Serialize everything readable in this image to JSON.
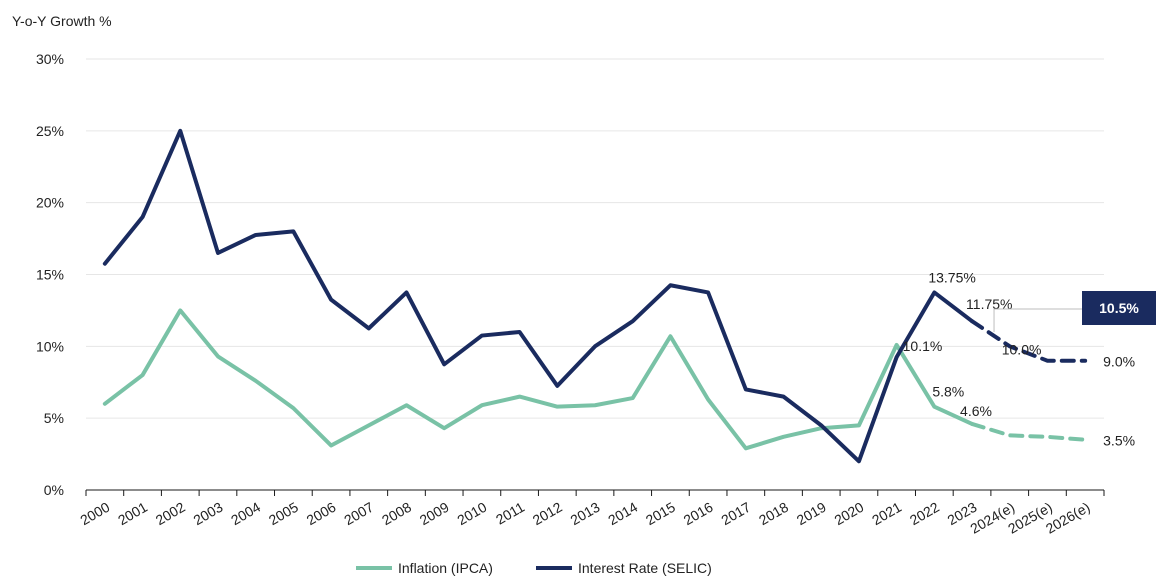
{
  "chart_data": {
    "type": "line",
    "ylabel": "Y-o-Y Growth %",
    "ylim": [
      0,
      30
    ],
    "yticks": [
      0,
      5,
      10,
      15,
      20,
      25,
      30
    ],
    "ytick_labels": [
      "0%",
      "5%",
      "10%",
      "15%",
      "20%",
      "25%",
      "30%"
    ],
    "categories": [
      "2000",
      "2001",
      "2002",
      "2003",
      "2004",
      "2005",
      "2006",
      "2007",
      "2008",
      "2009",
      "2010",
      "2011",
      "2012",
      "2013",
      "2014",
      "2015",
      "2016",
      "2017",
      "2018",
      "2019",
      "2020",
      "2021",
      "2022",
      "2023",
      "2024(e)",
      "2025(e)",
      "2026(e)"
    ],
    "grid": true,
    "legend_position": "bottom",
    "series": [
      {
        "name": "Inflation (IPCA)",
        "color": "#79c2a6",
        "values": [
          6.0,
          8.0,
          12.5,
          9.3,
          7.6,
          5.7,
          3.1,
          4.5,
          5.9,
          4.3,
          5.9,
          6.5,
          5.8,
          5.9,
          6.4,
          10.7,
          6.3,
          2.9,
          3.7,
          4.3,
          4.5,
          10.1,
          5.8,
          4.6,
          3.8,
          3.7,
          3.5
        ],
        "forecast_from_index": 23
      },
      {
        "name": "Interest Rate (SELIC)",
        "color": "#1a2b5f",
        "values": [
          15.75,
          19.0,
          25.0,
          16.5,
          17.75,
          18.0,
          13.25,
          11.25,
          13.75,
          8.75,
          10.75,
          11.0,
          7.25,
          10.0,
          11.75,
          14.25,
          13.75,
          7.0,
          6.5,
          4.5,
          2.0,
          9.25,
          13.75,
          11.75,
          10.0,
          9.0,
          9.0
        ],
        "forecast_from_index": 23
      }
    ],
    "data_labels": [
      {
        "series": 1,
        "index": 22,
        "text": "13.75%"
      },
      {
        "series": 1,
        "index": 23,
        "text": "11.75%"
      },
      {
        "series": 1,
        "index": 24,
        "text": "10.0%"
      },
      {
        "series": 1,
        "index": 26,
        "text": "9.0%"
      },
      {
        "series": 0,
        "index": 21,
        "text": "10.1%"
      },
      {
        "series": 0,
        "index": 22,
        "text": "5.8%"
      },
      {
        "series": 0,
        "index": 23,
        "text": "4.6%"
      },
      {
        "series": 0,
        "index": 26,
        "text": "3.5%"
      }
    ],
    "callout": {
      "text": "10.5%",
      "color": "#1a2b5f"
    }
  }
}
